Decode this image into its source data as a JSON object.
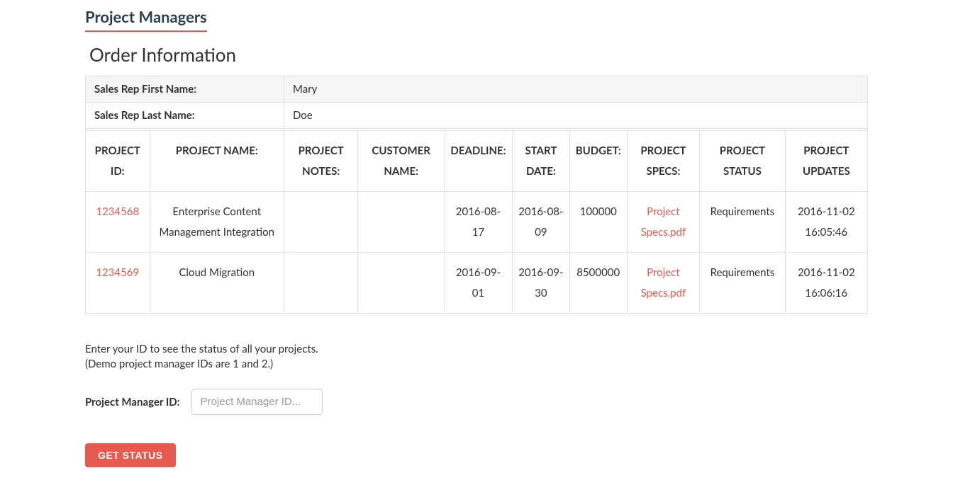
{
  "page": {
    "title": "Project Managers",
    "section_title": "Order Information"
  },
  "sales_rep": {
    "first_name_label": "Sales Rep First Name:",
    "first_name_value": "Mary",
    "last_name_label": "Sales Rep Last Name:",
    "last_name_value": "Doe"
  },
  "projects": {
    "columns": [
      "PROJECT ID:",
      "PROJECT NAME:",
      "PROJECT NOTES:",
      "CUSTOMER NAME:",
      "DEADLINE:",
      "START DATE:",
      "BUDGET:",
      "PROJECT SPECS:",
      "PROJECT STATUS",
      "PROJECT UPDATES"
    ],
    "rows": [
      {
        "id": "1234568",
        "name": "Enterprise Content Management Integration",
        "notes": "",
        "customer": "",
        "deadline": "2016-08-17",
        "start_date": "2016-08-09",
        "budget": "100000",
        "specs": "Project Specs.pdf",
        "status": "Requirements",
        "updates": "2016-11-02 16:05:46"
      },
      {
        "id": "1234569",
        "name": "Cloud Migration",
        "notes": "",
        "customer": "",
        "deadline": "2016-09-01",
        "start_date": "2016-09-30",
        "budget": "8500000",
        "specs": "Project Specs.pdf",
        "status": "Requirements",
        "updates": "2016-11-02 16:06:16"
      }
    ]
  },
  "help": {
    "line1": "Enter your ID to see the status of all your projects.",
    "line2": "(Demo project manager IDs are 1 and 2.)"
  },
  "form": {
    "label": "Project Manager ID:",
    "placeholder": "Project Manager ID...",
    "button": "GET STATUS"
  },
  "colors": {
    "accent": "#e85a4f",
    "border": "#e1e1e1",
    "header_bg": "#f5f5f5",
    "text": "#333333"
  }
}
